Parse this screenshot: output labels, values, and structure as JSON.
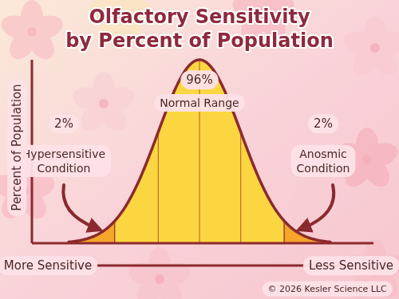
{
  "chart_data": {
    "type": "bell_curve",
    "title": "Olfactory Sensitivity\nby Percent of Population",
    "ylabel": "Percent of Population",
    "xlabels": [
      "More Sensitive",
      "Less Sensitive"
    ],
    "categories": [
      "Hypersensitive\nCondition",
      "Normal Range",
      "Anosmic\nCondition"
    ],
    "values": [
      2,
      96,
      2
    ],
    "value_labels": [
      "2%",
      "96%",
      "2%"
    ],
    "colors": [
      "#f5a52a",
      "#fcd640",
      "#f5a52a"
    ],
    "data_labels": true,
    "tick_labels": false,
    "source": "© 2026 Kesler Science LLC"
  }
}
